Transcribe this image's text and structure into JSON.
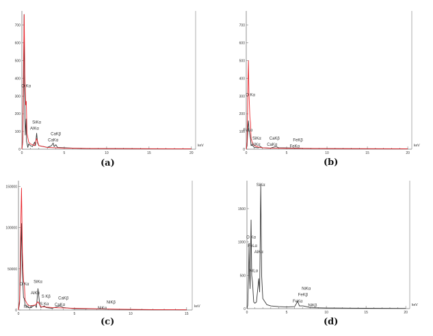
{
  "colors": {
    "primary": "#333333",
    "overlay": "#e8232a",
    "axis": "#777777"
  },
  "chart_data": [
    {
      "type": "line",
      "caption": "(a)",
      "xlabel": "keV",
      "xlim": [
        0,
        20.5
      ],
      "ylim": [
        0,
        780
      ],
      "x_ticks": [
        "0",
        "5",
        "10",
        "15",
        "20"
      ],
      "y_ticks": [
        "0",
        "100",
        "200",
        "300",
        "400",
        "500",
        "600",
        "700"
      ],
      "series": [
        {
          "style": "primary",
          "points": [
            [
              0,
              0
            ],
            [
              0.1,
              40
            ],
            [
              0.2,
              370
            ],
            [
              0.26,
              760
            ],
            [
              0.32,
              330
            ],
            [
              0.4,
              80
            ],
            [
              0.5,
              170
            ],
            [
              0.55,
              45
            ],
            [
              0.7,
              10
            ],
            [
              0.8,
              30
            ],
            [
              1.0,
              20
            ],
            [
              1.25,
              15
            ],
            [
              1.5,
              40
            ],
            [
              1.6,
              20
            ],
            [
              1.74,
              90
            ],
            [
              1.85,
              35
            ],
            [
              2.0,
              20
            ],
            [
              2.5,
              15
            ],
            [
              3.0,
              10
            ],
            [
              3.5,
              20
            ],
            [
              3.69,
              35
            ],
            [
              3.8,
              15
            ],
            [
              4.01,
              25
            ],
            [
              4.2,
              10
            ],
            [
              5,
              8
            ],
            [
              6,
              6
            ],
            [
              8,
              4
            ],
            [
              10,
              3
            ],
            [
              12,
              3
            ],
            [
              15,
              2
            ],
            [
              20,
              2
            ]
          ]
        },
        {
          "style": "overlay",
          "points": [
            [
              0,
              0
            ],
            [
              0.1,
              50
            ],
            [
              0.2,
              500
            ],
            [
              0.27,
              760
            ],
            [
              0.35,
              420
            ],
            [
              0.45,
              250
            ],
            [
              0.52,
              270
            ],
            [
              0.6,
              90
            ],
            [
              0.8,
              40
            ],
            [
              1.0,
              30
            ],
            [
              1.5,
              20
            ],
            [
              1.74,
              60
            ],
            [
              2.0,
              20
            ],
            [
              3.0,
              10
            ],
            [
              5,
              6
            ],
            [
              8,
              4
            ],
            [
              12,
              3
            ],
            [
              20,
              2
            ]
          ]
        }
      ],
      "annotations": [
        {
          "text": "O Kα",
          "x": 0.5,
          "y": 350
        },
        {
          "text": "SiKα",
          "x": 1.74,
          "y": 145
        },
        {
          "text": "AlKα",
          "x": 1.49,
          "y": 110
        },
        {
          "text": "CaKβ",
          "x": 4.01,
          "y": 80
        },
        {
          "text": "CaKα",
          "x": 3.69,
          "y": 45
        }
      ]
    },
    {
      "type": "line",
      "caption": "(b)",
      "xlabel": "keV",
      "xlim": [
        0,
        20.5
      ],
      "ylim": [
        0,
        780
      ],
      "x_ticks": [
        "0",
        "5",
        "10",
        "15",
        "20"
      ],
      "y_ticks": [
        "0",
        "100",
        "200",
        "300",
        "400",
        "500",
        "600",
        "700"
      ],
      "series": [
        {
          "style": "primary",
          "points": [
            [
              0,
              0
            ],
            [
              0.1,
              20
            ],
            [
              0.2,
              120
            ],
            [
              0.27,
              160
            ],
            [
              0.35,
              110
            ],
            [
              0.52,
              60
            ],
            [
              0.6,
              20
            ],
            [
              0.7,
              25
            ],
            [
              1.0,
              10
            ],
            [
              1.5,
              8
            ],
            [
              1.74,
              15
            ],
            [
              2.0,
              8
            ],
            [
              3.0,
              6
            ],
            [
              3.69,
              15
            ],
            [
              4.0,
              8
            ],
            [
              6.4,
              6
            ],
            [
              7.0,
              5
            ],
            [
              10,
              3
            ],
            [
              15,
              2
            ],
            [
              20,
              2
            ]
          ]
        },
        {
          "style": "overlay",
          "points": [
            [
              0,
              0
            ],
            [
              0.1,
              40
            ],
            [
              0.2,
              350
            ],
            [
              0.27,
              500
            ],
            [
              0.33,
              320
            ],
            [
              0.45,
              180
            ],
            [
              0.52,
              150
            ],
            [
              0.6,
              60
            ],
            [
              0.8,
              30
            ],
            [
              1.0,
              20
            ],
            [
              1.5,
              12
            ],
            [
              2.0,
              8
            ],
            [
              3.0,
              6
            ],
            [
              5,
              5
            ],
            [
              8,
              4
            ],
            [
              12,
              3
            ],
            [
              20,
              2
            ]
          ]
        }
      ],
      "annotations": [
        {
          "text": "O Kα",
          "x": 0.52,
          "y": 300
        },
        {
          "text": "FeLα",
          "x": 0.2,
          "y": 100
        },
        {
          "text": "SiKα",
          "x": 1.3,
          "y": 55
        },
        {
          "text": "AlKα",
          "x": 1.2,
          "y": 20
        },
        {
          "text": "CaKβ",
          "x": 3.5,
          "y": 55
        },
        {
          "text": "CaKα",
          "x": 3.2,
          "y": 20
        },
        {
          "text": "FeKβ",
          "x": 6.4,
          "y": 45
        },
        {
          "text": "FeKα",
          "x": 6.0,
          "y": 10
        }
      ]
    },
    {
      "type": "line",
      "caption": "(c)",
      "xlabel": "keV",
      "xlim": [
        0,
        15.5
      ],
      "ylim": [
        0,
        157000
      ],
      "x_ticks": [
        "0",
        "5",
        "10",
        "15"
      ],
      "y_ticks": [
        "0",
        "50000",
        "100000",
        "150000"
      ],
      "series": [
        {
          "style": "primary",
          "points": [
            [
              0,
              0
            ],
            [
              0.1,
              8000
            ],
            [
              0.2,
              60000
            ],
            [
              0.27,
              105000
            ],
            [
              0.35,
              45000
            ],
            [
              0.45,
              15000
            ],
            [
              0.52,
              14000
            ],
            [
              0.6,
              6000
            ],
            [
              0.8,
              4000
            ],
            [
              1.0,
              2500
            ],
            [
              1.49,
              6000
            ],
            [
              1.6,
              3000
            ],
            [
              1.74,
              26000
            ],
            [
              1.9,
              6000
            ],
            [
              2.0,
              3000
            ],
            [
              2.31,
              5000
            ],
            [
              2.46,
              3000
            ],
            [
              3.0,
              2000
            ],
            [
              3.69,
              5000
            ],
            [
              4.01,
              3000
            ],
            [
              5,
              1500
            ],
            [
              7.47,
              1200
            ],
            [
              8.26,
              1000
            ],
            [
              10,
              500
            ],
            [
              12,
              300
            ],
            [
              15,
              200
            ]
          ]
        },
        {
          "style": "overlay",
          "points": [
            [
              0,
              0
            ],
            [
              0.1,
              12000
            ],
            [
              0.2,
              100000
            ],
            [
              0.27,
              148000
            ],
            [
              0.35,
              70000
            ],
            [
              0.45,
              35000
            ],
            [
              0.52,
              32000
            ],
            [
              0.6,
              12000
            ],
            [
              0.8,
              7000
            ],
            [
              1.0,
              5000
            ],
            [
              1.5,
              6000
            ],
            [
              1.74,
              10000
            ],
            [
              2.0,
              4000
            ],
            [
              3.0,
              3000
            ],
            [
              5,
              2000
            ],
            [
              8,
              1200
            ],
            [
              10,
              800
            ],
            [
              12,
              500
            ],
            [
              15,
              300
            ]
          ]
        }
      ],
      "annotations": [
        {
          "text": "O Kα",
          "x": 0.52,
          "y": 30000
        },
        {
          "text": "NiLα",
          "x": 0.85,
          "y": 2500
        },
        {
          "text": "SiKα",
          "x": 1.74,
          "y": 33000
        },
        {
          "text": "AlKα",
          "x": 1.49,
          "y": 19000
        },
        {
          "text": "S Kβ",
          "x": 2.46,
          "y": 15000
        },
        {
          "text": "S Kα",
          "x": 2.31,
          "y": 6000
        },
        {
          "text": "CaKβ",
          "x": 4.01,
          "y": 13000
        },
        {
          "text": "CaKα",
          "x": 3.69,
          "y": 5000
        },
        {
          "text": "NiKβ",
          "x": 8.26,
          "y": 8000
        },
        {
          "text": "NiKα",
          "x": 7.47,
          "y": 1000
        }
      ]
    },
    {
      "type": "line",
      "caption": "(d)",
      "xlabel": "keV",
      "xlim": [
        0,
        20.5
      ],
      "ylim": [
        0,
        1920
      ],
      "x_ticks": [
        "0",
        "5",
        "10",
        "15",
        "20"
      ],
      "y_ticks": [
        "0",
        "500",
        "1000",
        "1500"
      ],
      "series": [
        {
          "style": "primary",
          "points": [
            [
              0,
              0
            ],
            [
              0.1,
              50
            ],
            [
              0.2,
              500
            ],
            [
              0.27,
              980
            ],
            [
              0.33,
              500
            ],
            [
              0.4,
              300
            ],
            [
              0.52,
              1330
            ],
            [
              0.6,
              500
            ],
            [
              0.7,
              400
            ],
            [
              0.85,
              100
            ],
            [
              1.0,
              80
            ],
            [
              1.2,
              100
            ],
            [
              1.49,
              450
            ],
            [
              1.6,
              250
            ],
            [
              1.74,
              1860
            ],
            [
              1.85,
              500
            ],
            [
              2.0,
              150
            ],
            [
              2.5,
              60
            ],
            [
              3.0,
              40
            ],
            [
              4.0,
              30
            ],
            [
              5.0,
              25
            ],
            [
              6.0,
              30
            ],
            [
              6.4,
              110
            ],
            [
              6.6,
              40
            ],
            [
              7.06,
              40
            ],
            [
              7.47,
              30
            ],
            [
              8.0,
              15
            ],
            [
              10,
              10
            ],
            [
              12,
              8
            ],
            [
              15,
              5
            ],
            [
              20,
              3
            ]
          ]
        }
      ],
      "annotations": [
        {
          "text": "O Kα",
          "x": 0.52,
          "y": 1050
        },
        {
          "text": "FeLα",
          "x": 0.7,
          "y": 925
        },
        {
          "text": "AlKα",
          "x": 1.49,
          "y": 830
        },
        {
          "text": "SiKα",
          "x": 1.74,
          "y": 1840
        },
        {
          "text": "NiLα",
          "x": 0.85,
          "y": 550
        },
        {
          "text": "NiKα",
          "x": 7.47,
          "y": 280
        },
        {
          "text": "FeKβ",
          "x": 7.06,
          "y": 190
        },
        {
          "text": "FeKα",
          "x": 6.4,
          "y": 90
        },
        {
          "text": "NiKβ",
          "x": 8.26,
          "y": 30
        }
      ]
    }
  ]
}
